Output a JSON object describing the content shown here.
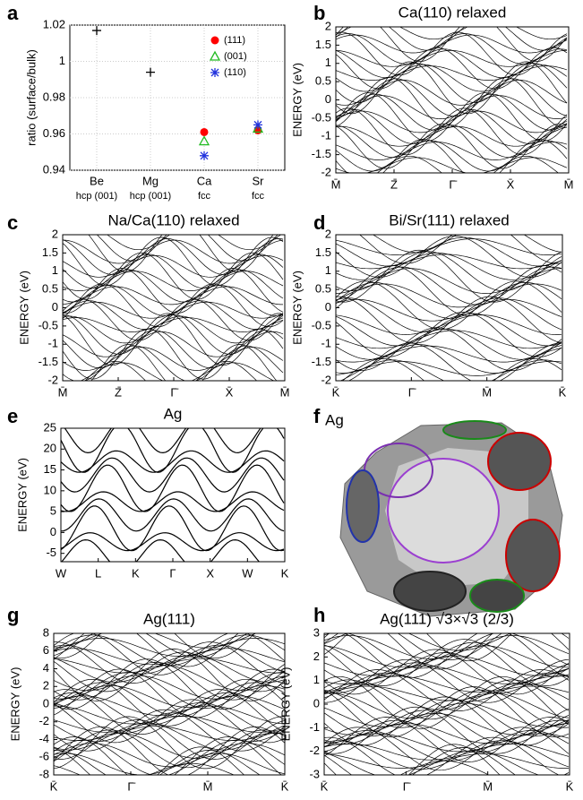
{
  "chart_data": [
    {
      "type": "scatter",
      "panel": "a",
      "ylabel": "ratio (surface/bulk)",
      "categories": [
        "Be",
        "Mg",
        "Ca",
        "Sr"
      ],
      "sublabels": [
        "hcp (001)",
        "hcp (001)",
        "fcc",
        "fcc"
      ],
      "ylim": [
        0.94,
        1.02
      ],
      "yticks": [
        0.94,
        0.96,
        0.98,
        1,
        1.02
      ],
      "grid": true,
      "series": [
        {
          "color": "#000000",
          "marker": "plus",
          "values": [
            1.017,
            0.994,
            null,
            null
          ]
        },
        {
          "name": "(111)",
          "color": "#ff0000",
          "marker": "circle",
          "values": [
            null,
            null,
            0.961,
            0.962
          ]
        },
        {
          "name": "(001)",
          "color": "#22bb22",
          "marker": "triangle",
          "values": [
            null,
            null,
            0.956,
            0.963
          ]
        },
        {
          "name": "(110)",
          "color": "#2233dd",
          "marker": "star",
          "values": [
            null,
            null,
            0.948,
            0.965
          ]
        }
      ]
    },
    {
      "type": "band",
      "panel": "b",
      "title": "Ca(110) relaxed",
      "ylabel": "ENERGY (eV)",
      "categories": [
        "M̄",
        "Z̄",
        "Γ̄",
        "X̄",
        "M̄"
      ],
      "ylim": [
        -2,
        2
      ],
      "yticks": [
        -2,
        -1.5,
        -1,
        -0.5,
        0,
        0.5,
        1,
        1.5,
        2
      ]
    },
    {
      "type": "band",
      "panel": "c",
      "title": "Na/Ca(110) relaxed",
      "ylabel": "ENERGY (eV)",
      "categories": [
        "M̄",
        "Z̄",
        "Γ̄",
        "X̄",
        "M̄"
      ],
      "ylim": [
        -2,
        2
      ],
      "yticks": [
        -2,
        -1.5,
        -1,
        -0.5,
        0,
        0.5,
        1,
        1.5,
        2
      ]
    },
    {
      "type": "band",
      "panel": "d",
      "title": "Bi/Sr(111) relaxed",
      "ylabel": "ENERGY (eV)",
      "categories": [
        "K̄",
        "Γ̄",
        "M̄",
        "K̄"
      ],
      "ylim": [
        -2,
        2
      ],
      "yticks": [
        -2,
        -1.5,
        -1,
        -0.5,
        0,
        0.5,
        1,
        1.5,
        2
      ]
    },
    {
      "type": "band",
      "panel": "e",
      "title": "Ag",
      "ylabel": "ENERGY (eV)",
      "categories": [
        "W",
        "L",
        "K",
        "Γ",
        "X",
        "W",
        "K"
      ],
      "ylim": [
        -7,
        25
      ],
      "yticks": [
        -5,
        0,
        5,
        10,
        15,
        20,
        25
      ]
    },
    {
      "type": "image",
      "panel": "f",
      "title": "Ag"
    },
    {
      "type": "band",
      "panel": "g",
      "title": "Ag(111)",
      "ylabel": "ENERGY (eV)",
      "categories": [
        "K̄",
        "Γ̄",
        "M̄",
        "K̄"
      ],
      "ylim": [
        -8,
        8
      ],
      "yticks": [
        -8,
        -6,
        -4,
        -2,
        0,
        2,
        4,
        6,
        8
      ]
    },
    {
      "type": "band",
      "panel": "h",
      "title": "Ag(111) √3×√3 (2/3)",
      "ylabel": "ENERGY (eV)",
      "categories": [
        "K̄",
        "Γ̄",
        "M̄",
        "K̄"
      ],
      "ylim": [
        -3,
        3
      ],
      "yticks": [
        -3,
        -2,
        -1,
        0,
        1,
        2,
        3
      ]
    }
  ]
}
